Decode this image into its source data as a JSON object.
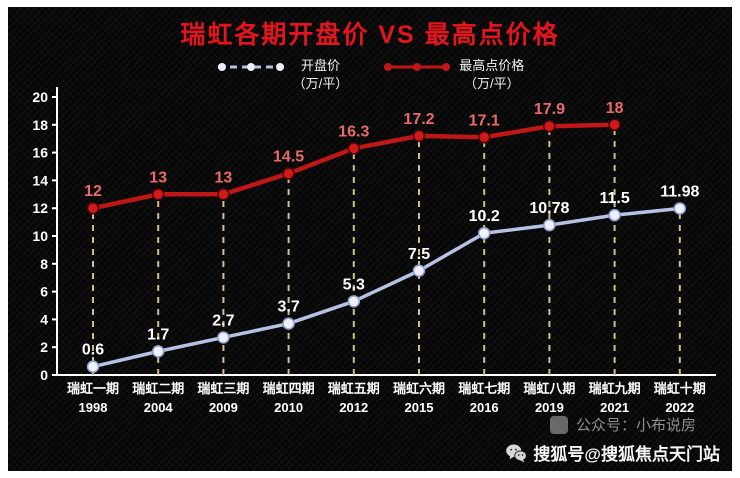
{
  "page": {
    "title": "瑞虹各期开盘价 VS 最高点价格",
    "title_color": "#e2151d",
    "bg_color": "#070707",
    "frame_color": "#ffffff"
  },
  "legend": {
    "position": "top",
    "items": [
      {
        "line1": "开盘价",
        "line2": "（万/平）",
        "color": "#b6c2e4",
        "dot_fill": "#e9eefb",
        "dashed": true
      },
      {
        "line1": "最高点价格",
        "line2": "（万/平）",
        "color": "#c01616",
        "dot_fill": "#c01616",
        "dashed": false
      }
    ]
  },
  "watermark": {
    "line1": "公众号：小布说房",
    "line2": "搜狐号@搜狐焦点天门站",
    "line1_icon": "rounded-square-logo-icon",
    "line2_icon": "wechat-icon"
  },
  "chart_data": {
    "type": "line",
    "title": "瑞虹各期开盘价 VS 最高点价格",
    "categories": [
      "瑞虹一期",
      "瑞虹二期",
      "瑞虹三期",
      "瑞虹四期",
      "瑞虹五期",
      "瑞虹六期",
      "瑞虹七期",
      "瑞虹八期",
      "瑞虹九期",
      "瑞虹十期"
    ],
    "years": [
      "1998",
      "2004",
      "2009",
      "2010",
      "2012",
      "2015",
      "2016",
      "2019",
      "2021",
      "2022"
    ],
    "series": [
      {
        "name": "开盘价（万/平）",
        "color": "#b6c2e4",
        "marker_fill": "#eef1fb",
        "marker_stroke": "#8d9ed2",
        "label_color": "#ffffff",
        "values": [
          0.6,
          1.7,
          2.7,
          3.7,
          5.3,
          7.5,
          10.2,
          10.78,
          11.5,
          11.98
        ]
      },
      {
        "name": "最高点价格（万/平）",
        "color": "#c01616",
        "marker_fill": "#d01a1a",
        "marker_stroke": "#4a0606",
        "label_color": "#ea6a6a",
        "values": [
          12,
          13,
          13,
          14.5,
          16.3,
          17.2,
          17.1,
          17.9,
          18,
          null
        ]
      }
    ],
    "ylim": [
      0,
      20
    ],
    "yticks": [
      0,
      2,
      4,
      6,
      8,
      10,
      12,
      14,
      16,
      18,
      20
    ],
    "grid": false,
    "axis_color": "#ffffff",
    "guide_lines": {
      "color": "#d4bd8a",
      "dash": "6 6"
    },
    "legend_position": "top"
  }
}
